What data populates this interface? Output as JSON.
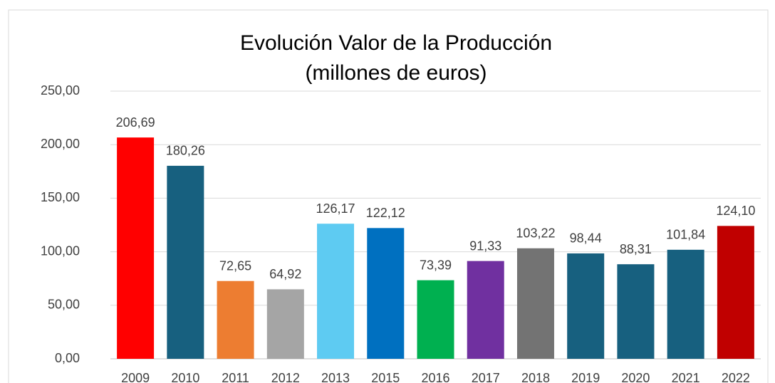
{
  "chart_data": {
    "type": "bar",
    "title": [
      "Evolución Valor de la Producción",
      "(millones de euros)"
    ],
    "categories": [
      "2009",
      "2010",
      "2011",
      "2012",
      "2013",
      "2015",
      "2016",
      "2017",
      "2018",
      "2019",
      "2020",
      "2021",
      "2022"
    ],
    "values": [
      206.69,
      180.26,
      72.65,
      64.92,
      126.17,
      122.12,
      73.39,
      91.33,
      103.22,
      98.44,
      88.31,
      101.84,
      124.1
    ],
    "value_labels": [
      "206,69",
      "180,26",
      "72,65",
      "64,92",
      "126,17",
      "122,12",
      "73,39",
      "91,33",
      "103,22",
      "98,44",
      "88,31",
      "101,84",
      "124,10"
    ],
    "colors": [
      "#ff0000",
      "#17607f",
      "#ed7d31",
      "#a5a5a5",
      "#5ecbf2",
      "#0070c0",
      "#00b050",
      "#7030a0",
      "#737373",
      "#17607f",
      "#17607f",
      "#17607f",
      "#c00000"
    ],
    "ylim": [
      0,
      250
    ],
    "yticks": [
      {
        "value": 0,
        "label": "0,00"
      },
      {
        "value": 50,
        "label": "50,00"
      },
      {
        "value": 100,
        "label": "100,00"
      },
      {
        "value": 150,
        "label": "150,00"
      },
      {
        "value": 200,
        "label": "200,00"
      },
      {
        "value": 250,
        "label": "250,00"
      }
    ],
    "grid": true
  }
}
